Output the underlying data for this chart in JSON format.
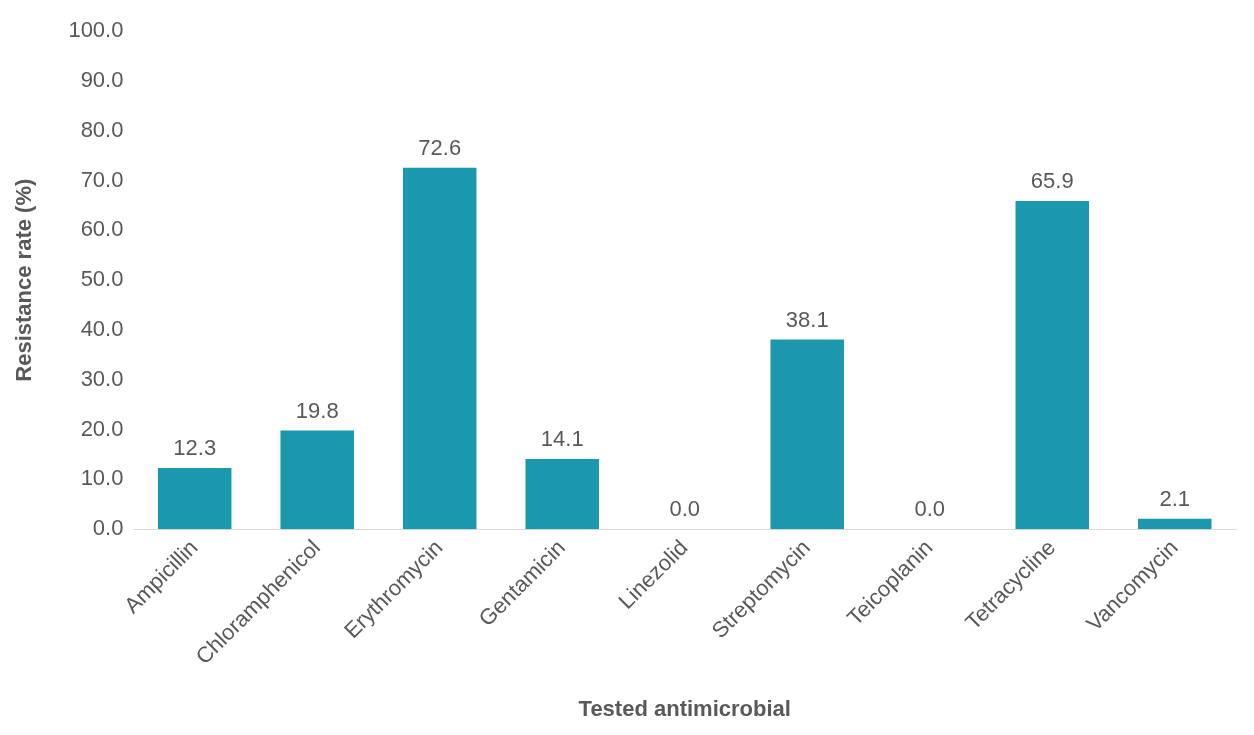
{
  "chart_data": {
    "type": "bar",
    "xlabel": "Tested antimicrobial",
    "ylabel": "Resistance rate (%)",
    "categories": [
      "Ampicillin",
      "Chloramphenicol",
      "Erythromycin",
      "Gentamicin",
      "Linezolid",
      "Streptomycin",
      "Teicoplanin",
      "Tetracycline",
      "Vancomycin"
    ],
    "values": [
      12.3,
      19.8,
      72.6,
      14.1,
      0,
      38.1,
      0,
      65.9,
      2.1
    ],
    "value_labels": [
      "12.3",
      "19.8",
      "72.6",
      "14.1",
      "0.0",
      "38.1",
      "0.0",
      "65.9",
      "2.1"
    ],
    "color": "#1b98ae",
    "ylim": [
      0,
      100
    ],
    "yticks": [
      {
        "value": 0,
        "label": "0.0"
      },
      {
        "value": 10,
        "label": "10.0"
      },
      {
        "value": 20,
        "label": "20.0"
      },
      {
        "value": 30,
        "label": "30.0"
      },
      {
        "value": 40,
        "label": "40.0"
      },
      {
        "value": 50,
        "label": "50.0"
      },
      {
        "value": 60,
        "label": "60.0"
      },
      {
        "value": 70,
        "label": "70.0"
      },
      {
        "value": 80,
        "label": "80.0"
      },
      {
        "value": 90,
        "label": "90.0"
      },
      {
        "value": 100,
        "label": "100.0"
      }
    ],
    "grid": false,
    "legend": false
  }
}
